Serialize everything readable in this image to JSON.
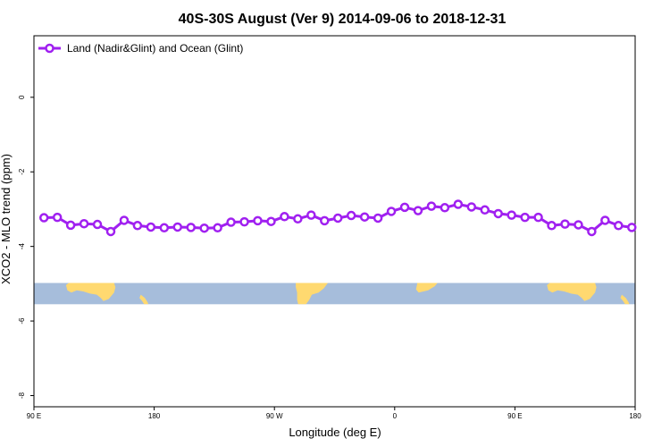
{
  "chart_data": {
    "type": "line",
    "title": "40S-30S August (Ver 9)   2014-09-06 to 2018-12-31",
    "xlabel": "Longitude (deg E)",
    "ylabel": "XCO2 - MLO trend (ppm)",
    "x_ticks": [
      {
        "value": 90,
        "label": "90 E"
      },
      {
        "value": 180,
        "label": "180"
      },
      {
        "value": 270,
        "label": "90 W"
      },
      {
        "value": 360,
        "label": "0"
      },
      {
        "value": 450,
        "label": "90 E"
      },
      {
        "value": 540,
        "label": "180"
      }
    ],
    "y_ticks": [
      {
        "value": 0,
        "label": "0"
      },
      {
        "value": -2,
        "label": "-2"
      },
      {
        "value": -4,
        "label": "-4"
      },
      {
        "value": -6,
        "label": "-6"
      },
      {
        "value": -8,
        "label": "-8"
      }
    ],
    "xlim": [
      90,
      540
    ],
    "ylim": [
      -8.3,
      1.65
    ],
    "grid": false,
    "legend_position": "top-left",
    "colors": {
      "series": "#a020f0",
      "ocean": "#a6bddb",
      "land": "#ffd970"
    },
    "map_strip": {
      "y_range": [
        -5.55,
        -4.98
      ]
    },
    "series": [
      {
        "name": "Land (Nadir&Glint) and Ocean (Glint)",
        "x": [
          97.5,
          107.5,
          117.5,
          127.5,
          137.5,
          147.5,
          157.5,
          167.5,
          177.5,
          187.5,
          197.5,
          207.5,
          217.5,
          227.5,
          237.5,
          247.5,
          257.5,
          267.5,
          277.5,
          287.5,
          297.5,
          307.5,
          317.5,
          327.5,
          337.5,
          347.5,
          357.5,
          367.5,
          377.5,
          387.5,
          397.5,
          407.5,
          417.5,
          427.5,
          437.5,
          447.5,
          457.5,
          467.5,
          477.5,
          487.5,
          497.5,
          507.5,
          517.5,
          527.5,
          537.5
        ],
        "y": [
          -3.23,
          -3.22,
          -3.43,
          -3.39,
          -3.41,
          -3.6,
          -3.3,
          -3.44,
          -3.48,
          -3.5,
          -3.48,
          -3.49,
          -3.51,
          -3.5,
          -3.35,
          -3.34,
          -3.31,
          -3.33,
          -3.2,
          -3.26,
          -3.16,
          -3.31,
          -3.24,
          -3.17,
          -3.21,
          -3.24,
          -3.06,
          -2.95,
          -3.04,
          -2.92,
          -2.96,
          -2.87,
          -2.94,
          -3.02,
          -3.12,
          -3.16,
          -3.22,
          -3.22,
          -3.44,
          -3.4,
          -3.42,
          -3.6,
          -3.3,
          -3.44,
          -3.49
        ]
      }
    ]
  }
}
